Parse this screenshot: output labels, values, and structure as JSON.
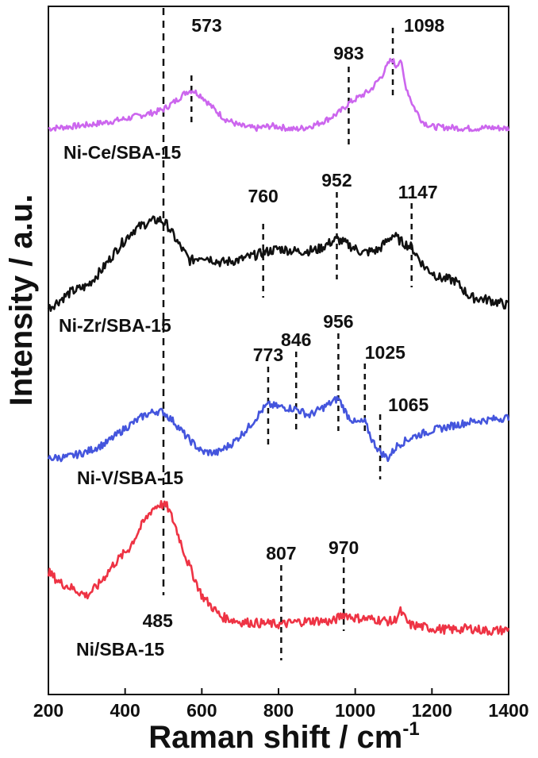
{
  "chart_data": {
    "type": "line",
    "xlabel": "Raman shift / cm",
    "xlabel_sup": "-1",
    "ylabel": "Intensity / a.u.",
    "xlim": [
      200,
      1400
    ],
    "x_ticks": [
      200,
      400,
      600,
      800,
      1000,
      1200,
      1400
    ],
    "y_ticks_shown": false,
    "grid": false,
    "reference_line_x": 500,
    "series": [
      {
        "name": "Ni-Ce/SBA-15",
        "color": "#cc66ee",
        "baseline": 0.0,
        "points": [
          [
            200,
            0.01
          ],
          [
            250,
            0.03
          ],
          [
            300,
            0.05
          ],
          [
            350,
            0.08
          ],
          [
            400,
            0.12
          ],
          [
            450,
            0.17
          ],
          [
            480,
            0.2
          ],
          [
            500,
            0.23
          ],
          [
            530,
            0.32
          ],
          [
            560,
            0.43
          ],
          [
            575,
            0.45
          ],
          [
            600,
            0.38
          ],
          [
            630,
            0.24
          ],
          [
            660,
            0.12
          ],
          [
            700,
            0.04
          ],
          [
            740,
            0.01
          ],
          [
            780,
            0.04
          ],
          [
            800,
            0.03
          ],
          [
            840,
            0.0
          ],
          [
            870,
            0.02
          ],
          [
            900,
            0.06
          ],
          [
            930,
            0.12
          ],
          [
            960,
            0.2
          ],
          [
            983,
            0.3
          ],
          [
            1010,
            0.37
          ],
          [
            1040,
            0.45
          ],
          [
            1070,
            0.62
          ],
          [
            1090,
            0.78
          ],
          [
            1098,
            0.8
          ],
          [
            1105,
            0.72
          ],
          [
            1118,
            0.8
          ],
          [
            1130,
            0.52
          ],
          [
            1150,
            0.28
          ],
          [
            1175,
            0.09
          ],
          [
            1200,
            0.03
          ],
          [
            1250,
            0.02
          ],
          [
            1300,
            0.01
          ],
          [
            1350,
            0.02
          ],
          [
            1400,
            0.01
          ]
        ]
      },
      {
        "name": "Ni-Zr/SBA-15",
        "color": "#111111",
        "baseline": 0.0,
        "points": [
          [
            200,
            0.02
          ],
          [
            230,
            0.08
          ],
          [
            260,
            0.14
          ],
          [
            300,
            0.18
          ],
          [
            340,
            0.3
          ],
          [
            380,
            0.45
          ],
          [
            420,
            0.58
          ],
          [
            460,
            0.64
          ],
          [
            490,
            0.66
          ],
          [
            510,
            0.62
          ],
          [
            540,
            0.48
          ],
          [
            570,
            0.36
          ],
          [
            600,
            0.4
          ],
          [
            650,
            0.35
          ],
          [
            700,
            0.37
          ],
          [
            760,
            0.42
          ],
          [
            800,
            0.45
          ],
          [
            850,
            0.43
          ],
          [
            900,
            0.44
          ],
          [
            952,
            0.52
          ],
          [
            980,
            0.48
          ],
          [
            1020,
            0.42
          ],
          [
            1060,
            0.44
          ],
          [
            1098,
            0.55
          ],
          [
            1120,
            0.5
          ],
          [
            1147,
            0.46
          ],
          [
            1180,
            0.32
          ],
          [
            1220,
            0.24
          ],
          [
            1260,
            0.22
          ],
          [
            1300,
            0.1
          ],
          [
            1350,
            0.08
          ],
          [
            1400,
            0.04
          ]
        ]
      },
      {
        "name": "Ni-V/SBA-15",
        "color": "#4455dd",
        "baseline": 0.0,
        "points": [
          [
            200,
            0.02
          ],
          [
            250,
            0.03
          ],
          [
            300,
            0.08
          ],
          [
            350,
            0.16
          ],
          [
            400,
            0.3
          ],
          [
            450,
            0.42
          ],
          [
            480,
            0.46
          ],
          [
            500,
            0.45
          ],
          [
            530,
            0.35
          ],
          [
            560,
            0.22
          ],
          [
            600,
            0.08
          ],
          [
            640,
            0.07
          ],
          [
            680,
            0.16
          ],
          [
            720,
            0.3
          ],
          [
            760,
            0.48
          ],
          [
            773,
            0.52
          ],
          [
            800,
            0.5
          ],
          [
            846,
            0.48
          ],
          [
            880,
            0.42
          ],
          [
            920,
            0.5
          ],
          [
            956,
            0.58
          ],
          [
            980,
            0.42
          ],
          [
            1000,
            0.35
          ],
          [
            1025,
            0.36
          ],
          [
            1045,
            0.18
          ],
          [
            1065,
            0.08
          ],
          [
            1085,
            0.02
          ],
          [
            1110,
            0.14
          ],
          [
            1150,
            0.22
          ],
          [
            1200,
            0.28
          ],
          [
            1250,
            0.32
          ],
          [
            1300,
            0.36
          ],
          [
            1350,
            0.38
          ],
          [
            1400,
            0.4
          ]
        ]
      },
      {
        "name": "Ni/SBA-15",
        "color": "#ee3344",
        "baseline": 0.0,
        "points": [
          [
            200,
            0.48
          ],
          [
            230,
            0.4
          ],
          [
            260,
            0.36
          ],
          [
            300,
            0.3
          ],
          [
            330,
            0.38
          ],
          [
            370,
            0.54
          ],
          [
            410,
            0.66
          ],
          [
            440,
            0.82
          ],
          [
            470,
            0.96
          ],
          [
            490,
            1.0
          ],
          [
            510,
            0.98
          ],
          [
            530,
            0.84
          ],
          [
            560,
            0.58
          ],
          [
            600,
            0.3
          ],
          [
            650,
            0.14
          ],
          [
            700,
            0.1
          ],
          [
            750,
            0.09
          ],
          [
            807,
            0.08
          ],
          [
            850,
            0.1
          ],
          [
            900,
            0.11
          ],
          [
            940,
            0.1
          ],
          [
            970,
            0.16
          ],
          [
            1000,
            0.13
          ],
          [
            1050,
            0.12
          ],
          [
            1100,
            0.1
          ],
          [
            1118,
            0.18
          ],
          [
            1140,
            0.08
          ],
          [
            1200,
            0.05
          ],
          [
            1250,
            0.04
          ],
          [
            1300,
            0.05
          ],
          [
            1350,
            0.03
          ],
          [
            1400,
            0.04
          ]
        ]
      }
    ],
    "peak_markers": [
      {
        "series": "Ni-Ce/SBA-15",
        "x": 573,
        "label": "573"
      },
      {
        "series": "Ni-Ce/SBA-15",
        "x": 983,
        "label": "983"
      },
      {
        "series": "Ni-Ce/SBA-15",
        "x": 1098,
        "label": "1098"
      },
      {
        "series": "Ni-Zr/SBA-15",
        "x": 760,
        "label": "760"
      },
      {
        "series": "Ni-Zr/SBA-15",
        "x": 952,
        "label": "952"
      },
      {
        "series": "Ni-Zr/SBA-15",
        "x": 1147,
        "label": "1147"
      },
      {
        "series": "Ni-V/SBA-15",
        "x": 773,
        "label": "773"
      },
      {
        "series": "Ni-V/SBA-15",
        "x": 846,
        "label": "846"
      },
      {
        "series": "Ni-V/SBA-15",
        "x": 956,
        "label": "956"
      },
      {
        "series": "Ni-V/SBA-15",
        "x": 1025,
        "label": "1025"
      },
      {
        "series": "Ni-V/SBA-15",
        "x": 1065,
        "label": "1065"
      },
      {
        "series": "Ni/SBA-15",
        "x": 807,
        "label": "807"
      },
      {
        "series": "Ni/SBA-15",
        "x": 970,
        "label": "970"
      },
      {
        "series": "Ni/SBA-15",
        "x": 485,
        "label": "485"
      }
    ]
  }
}
